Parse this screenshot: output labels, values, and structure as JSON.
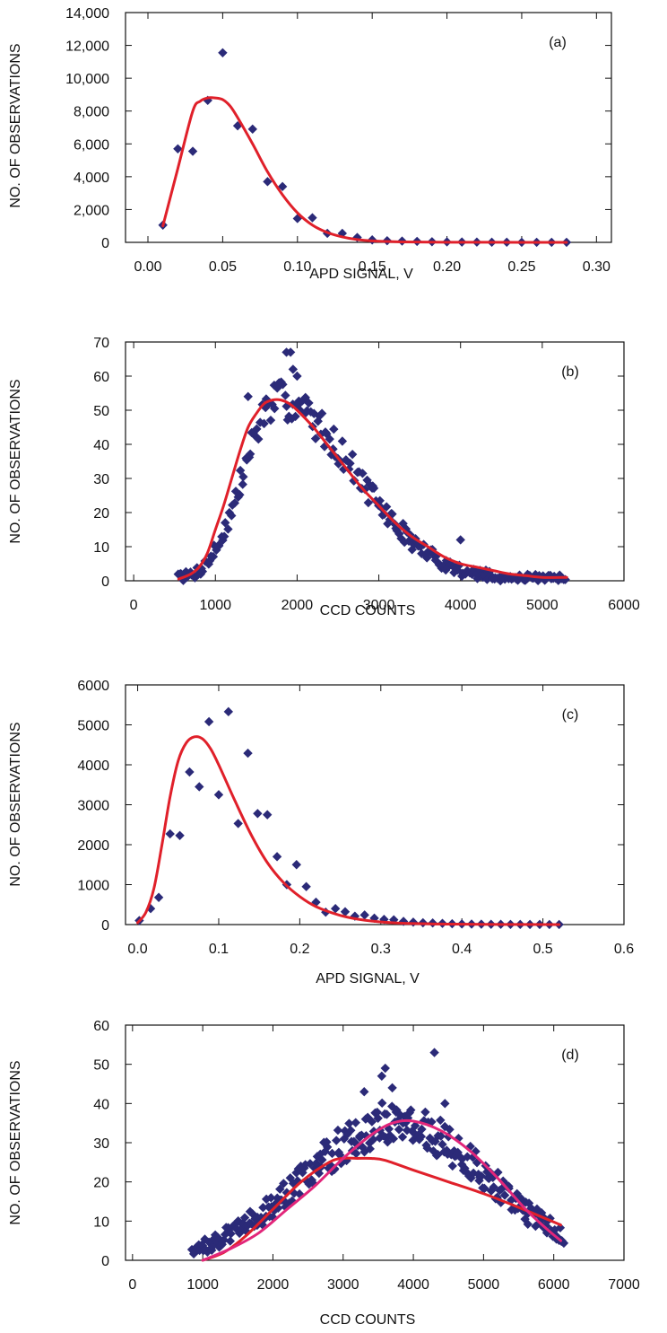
{
  "colors": {
    "marker": "#2b2a78",
    "fit": "#e0202a",
    "fit2": "#e2267a",
    "frame": "#111111"
  },
  "chart_data": [
    {
      "type": "scatter",
      "panel_label": "(a)",
      "xlabel": "APD SIGNAL, V",
      "ylabel": "NO. OF OBSERVATIONS",
      "xlim": [
        -0.015,
        0.31
      ],
      "ylim": [
        0,
        14000
      ],
      "xticks": [
        0,
        0.05,
        0.1,
        0.15,
        0.2,
        0.25,
        0.3
      ],
      "xtick_labels": [
        "0.00",
        "0.05",
        "0.10",
        "0.15",
        "0.20",
        "0.25",
        "0.30"
      ],
      "yticks": [
        0,
        2000,
        4000,
        6000,
        8000,
        10000,
        12000,
        14000
      ],
      "ytick_labels": [
        "0",
        "2,000",
        "4,000",
        "6,000",
        "8,000",
        "10,000",
        "12,000",
        "14,000"
      ],
      "series": [
        {
          "kind": "points",
          "x": [
            0.01,
            0.02,
            0.03,
            0.04,
            0.05,
            0.06,
            0.07,
            0.08,
            0.09,
            0.1,
            0.11,
            0.12,
            0.13,
            0.14,
            0.15,
            0.16,
            0.17,
            0.18,
            0.19,
            0.2,
            0.21,
            0.22,
            0.23,
            0.24,
            0.25,
            0.26,
            0.27,
            0.28
          ],
          "y": [
            1050,
            5700,
            5550,
            8650,
            11550,
            7100,
            6900,
            3700,
            3400,
            1450,
            1500,
            550,
            550,
            300,
            150,
            100,
            80,
            60,
            40,
            30,
            20,
            15,
            10,
            10,
            5,
            5,
            5,
            5
          ]
        },
        {
          "kind": "fit",
          "color": "fit",
          "x": [
            0.01,
            0.02,
            0.03,
            0.035,
            0.04,
            0.045,
            0.05,
            0.055,
            0.06,
            0.07,
            0.08,
            0.09,
            0.1,
            0.11,
            0.12,
            0.13,
            0.14,
            0.15,
            0.17,
            0.2,
            0.25,
            0.28
          ],
          "y": [
            1000,
            4500,
            8000,
            8600,
            8800,
            8800,
            8700,
            8300,
            7600,
            6000,
            4300,
            2900,
            1800,
            1050,
            600,
            330,
            170,
            90,
            30,
            8,
            2,
            1
          ]
        }
      ]
    },
    {
      "type": "scatter",
      "panel_label": "(b)",
      "xlabel": "CCD COUNTS",
      "ylabel": "NO. OF OBSERVATIONS",
      "xlim": [
        -100,
        6000
      ],
      "ylim": [
        0,
        70
      ],
      "xticks": [
        0,
        1000,
        2000,
        3000,
        4000,
        5000,
        6000
      ],
      "xtick_labels": [
        "0",
        "1000",
        "2000",
        "3000",
        "4000",
        "5000",
        "6000"
      ],
      "yticks": [
        0,
        10,
        20,
        30,
        40,
        50,
        60,
        70
      ],
      "ytick_labels": [
        "0",
        "10",
        "20",
        "30",
        "40",
        "50",
        "60",
        "70"
      ],
      "scatter_cloud": {
        "x_start": 550,
        "x_end": 5300,
        "step": 20,
        "mu": 1750,
        "sigma_left": 400,
        "sigma_right": 950,
        "peak": 53,
        "noise": 8,
        "seed": 7,
        "outliers": [
          [
            1870,
            67
          ],
          [
            1920,
            67
          ],
          [
            1950,
            62
          ],
          [
            2000,
            60
          ],
          [
            1400,
            54
          ],
          [
            4000,
            12
          ]
        ]
      },
      "series": [
        {
          "kind": "fit",
          "color": "fit",
          "x": [
            550,
            700,
            800,
            900,
            1000,
            1100,
            1200,
            1300,
            1400,
            1500,
            1600,
            1700,
            1800,
            1900,
            2000,
            2200,
            2400,
            2600,
            2800,
            3000,
            3200,
            3400,
            3600,
            3800,
            4000,
            4200,
            4400,
            4600,
            4800,
            5000,
            5300
          ],
          "y": [
            0.5,
            2,
            4,
            8,
            15,
            22,
            30,
            38,
            45,
            49,
            52,
            53,
            53,
            52,
            50,
            45,
            39,
            33,
            27,
            22,
            17,
            13,
            10,
            7,
            5,
            4,
            3,
            2,
            1.5,
            1,
            1
          ]
        }
      ]
    },
    {
      "type": "scatter",
      "panel_label": "(c)",
      "xlabel": "APD SIGNAL, V",
      "ylabel": "NO. OF OBSERVATIONS",
      "xlim": [
        -0.015,
        0.6
      ],
      "ylim": [
        0,
        6000
      ],
      "xticks": [
        0,
        0.1,
        0.2,
        0.3,
        0.4,
        0.5,
        0.6
      ],
      "xtick_labels": [
        "0.0",
        "0.1",
        "0.2",
        "0.3",
        "0.4",
        "0.5",
        "0.6"
      ],
      "yticks": [
        0,
        1000,
        2000,
        3000,
        4000,
        5000,
        6000
      ],
      "ytick_labels": [
        "0",
        "1000",
        "2000",
        "3000",
        "4000",
        "5000",
        "6000"
      ],
      "series": [
        {
          "kind": "points",
          "x": [
            0.002,
            0.016,
            0.026,
            0.04,
            0.052,
            0.064,
            0.076,
            0.088,
            0.1,
            0.112,
            0.124,
            0.136,
            0.148,
            0.16,
            0.172,
            0.184,
            0.196,
            0.208,
            0.22,
            0.232,
            0.244,
            0.256,
            0.268,
            0.28,
            0.292,
            0.304,
            0.316,
            0.328,
            0.34,
            0.352,
            0.364,
            0.376,
            0.388,
            0.4,
            0.412,
            0.424,
            0.436,
            0.448,
            0.46,
            0.472,
            0.484,
            0.496,
            0.508,
            0.52
          ],
          "y": [
            100,
            400,
            680,
            2270,
            2230,
            3820,
            3450,
            5080,
            3250,
            5330,
            2530,
            4290,
            2780,
            2750,
            1700,
            1000,
            1500,
            950,
            560,
            310,
            400,
            320,
            210,
            240,
            160,
            130,
            120,
            80,
            60,
            45,
            40,
            30,
            20,
            15,
            12,
            10,
            8,
            6,
            5,
            4,
            3,
            3,
            2,
            2
          ]
        },
        {
          "kind": "fit",
          "color": "fit",
          "x": [
            0,
            0.01,
            0.02,
            0.03,
            0.04,
            0.05,
            0.06,
            0.07,
            0.08,
            0.09,
            0.1,
            0.12,
            0.14,
            0.16,
            0.18,
            0.2,
            0.22,
            0.25,
            0.28,
            0.32,
            0.38,
            0.45,
            0.52
          ],
          "y": [
            50,
            300,
            900,
            2000,
            3200,
            4100,
            4550,
            4700,
            4650,
            4400,
            4000,
            3100,
            2250,
            1550,
            1050,
            700,
            450,
            230,
            110,
            40,
            12,
            3,
            1
          ]
        }
      ]
    },
    {
      "type": "scatter",
      "panel_label": "(d)",
      "xlabel": "CCD COUNTS",
      "ylabel": "NO. OF OBSERVATIONS",
      "xlim": [
        -100,
        7000
      ],
      "ylim": [
        0,
        60
      ],
      "xticks": [
        0,
        1000,
        2000,
        3000,
        4000,
        5000,
        6000,
        7000
      ],
      "xtick_labels": [
        "0",
        "1000",
        "2000",
        "3000",
        "4000",
        "5000",
        "6000",
        "7000"
      ],
      "yticks": [
        0,
        10,
        20,
        30,
        40,
        50,
        60
      ],
      "ytick_labels": [
        "0",
        "10",
        "20",
        "30",
        "40",
        "50",
        "60"
      ],
      "scatter_cloud": {
        "x_start": 850,
        "x_end": 6150,
        "step": 18,
        "mu": 3750,
        "sigma_left": 1300,
        "sigma_right": 1300,
        "peak": 35,
        "noise": 8,
        "seed": 13,
        "outliers": [
          [
            4300,
            53
          ],
          [
            3600,
            49
          ],
          [
            3550,
            47
          ],
          [
            3700,
            44
          ],
          [
            4450,
            40
          ],
          [
            3300,
            43
          ]
        ]
      },
      "series": [
        {
          "kind": "fit",
          "color": "fit",
          "x": [
            1000,
            1300,
            1600,
            2000,
            2400,
            2800,
            3000,
            3200,
            3400,
            3600,
            4000,
            4500,
            5000,
            5500,
            6100
          ],
          "y": [
            0,
            2,
            6,
            13,
            20,
            25,
            26,
            26,
            26,
            25.5,
            23,
            20,
            17,
            13.5,
            9
          ]
        },
        {
          "kind": "fit",
          "color": "fit2",
          "x": [
            1000,
            1400,
            1800,
            2200,
            2600,
            3000,
            3400,
            3700,
            4000,
            4400,
            4800,
            5200,
            5600,
            5900,
            6100
          ],
          "y": [
            0,
            3,
            7,
            13,
            19,
            26,
            32,
            35,
            35.5,
            33,
            28,
            21,
            13,
            8,
            5
          ]
        }
      ]
    }
  ]
}
